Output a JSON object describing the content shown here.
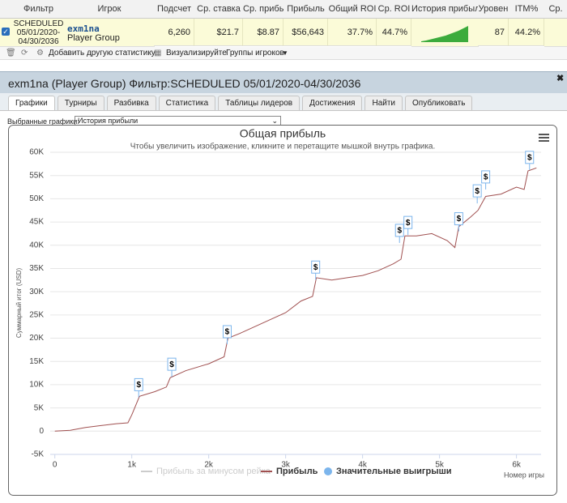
{
  "table": {
    "headers": [
      "Фильтр",
      "Игрок",
      "Подсчет",
      "Ср. ставка",
      "Ср. прибыль",
      "Прибыль",
      "Общий ROI",
      "Ср. ROI",
      "История прибыли",
      "Уровен",
      "ITM%",
      "Ср."
    ],
    "row": {
      "filter": "SCHEDULED 05/01/2020-04/30/2036",
      "player": "exm1na",
      "group": "Player Group",
      "cells": [
        "6,260",
        "$21.7",
        "$8.87",
        "$56,643",
        "37.7%",
        "44.7%"
      ],
      "level": "87",
      "itm": "44.2%"
    }
  },
  "toolbar": {
    "add": "Добавить другую статистику",
    "visualize": "Визуализируйте",
    "groups": "Группы игроков"
  },
  "panel": {
    "title": "exm1na (Player Group) Фильтр:SCHEDULED 05/01/2020-04/30/2036",
    "tabs": [
      "Графики",
      "Турниры",
      "Разбивка",
      "Статистика",
      "Таблицы лидеров",
      "Достижения",
      "Найти",
      "Опубликовать"
    ],
    "select_label": "Выбранные графики:",
    "select_value": "История прибыли"
  },
  "chart_data": {
    "type": "line",
    "title": "Общая прибыль",
    "subtitle": "Чтобы увеличить изображение, кликните и перетащите мышкой внутрь графика.",
    "ylabel": "Суммарный итог (USD)",
    "xlabel": "Номер игры",
    "xlim": [
      -60,
      6320
    ],
    "ylim": [
      -5000,
      60000
    ],
    "grid": true,
    "xticks": [
      0,
      {
        "value": 1000,
        "label": "1k"
      },
      {
        "value": 2000,
        "label": "2k"
      },
      {
        "value": 3000,
        "label": "3k"
      },
      {
        "value": 4000,
        "label": "4k"
      },
      {
        "value": 5000,
        "label": "5k"
      },
      {
        "value": 6000,
        "label": "6k"
      }
    ],
    "yticks": [
      {
        "value": -5000,
        "label": "-5K"
      },
      0,
      {
        "value": 5000,
        "label": "5K"
      },
      {
        "value": 10000,
        "label": "10K"
      },
      {
        "value": 15000,
        "label": "15K"
      },
      {
        "value": 20000,
        "label": "20K"
      },
      {
        "value": 25000,
        "label": "25K"
      },
      {
        "value": 30000,
        "label": "30K"
      },
      {
        "value": 35000,
        "label": "35K"
      },
      {
        "value": 40000,
        "label": "40K"
      },
      {
        "value": 45000,
        "label": "45K"
      },
      {
        "value": 50000,
        "label": "50K"
      },
      {
        "value": 55000,
        "label": "55K"
      },
      {
        "value": 60000,
        "label": "60K"
      }
    ],
    "series": [
      {
        "name": "Прибыль за минусом рейка",
        "color": "#cccccc",
        "hidden": true
      },
      {
        "name": "Прибыль",
        "color": "#a05050",
        "x": [
          0,
          200,
          400,
          600,
          800,
          950,
          1000,
          1100,
          1300,
          1450,
          1500,
          1700,
          2000,
          2200,
          2250,
          2400,
          2600,
          2800,
          3000,
          3200,
          3350,
          3400,
          3600,
          3800,
          4000,
          4200,
          4400,
          4500,
          4550,
          4700,
          4900,
          5100,
          5200,
          5250,
          5400,
          5500,
          5600,
          5800,
          6000,
          6100,
          6150,
          6260
        ],
        "values": [
          0,
          200,
          800,
          1200,
          1600,
          1800,
          3500,
          7500,
          8500,
          9500,
          11500,
          13000,
          14500,
          16000,
          20000,
          21000,
          22500,
          24000,
          25500,
          28000,
          29000,
          33000,
          32500,
          33000,
          33500,
          34500,
          36000,
          37000,
          42000,
          42000,
          42500,
          41000,
          39500,
          44000,
          46000,
          47500,
          50500,
          51000,
          52500,
          52000,
          56000,
          56643
        ]
      },
      {
        "name": "Значительные выигрыши",
        "color": "#7cb5ec",
        "marker": "$",
        "x": [
          1090,
          1520,
          2240,
          3390,
          4480,
          4590,
          5250,
          5490,
          5600,
          6170
        ],
        "values": [
          7300,
          11700,
          18700,
          32600,
          40500,
          42200,
          43000,
          49000,
          52000,
          56200
        ]
      }
    ]
  }
}
